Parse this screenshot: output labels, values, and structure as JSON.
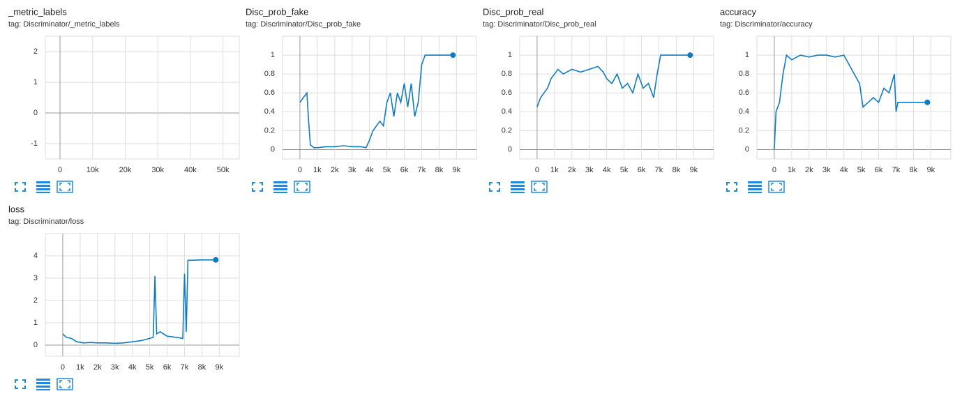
{
  "chart_data": [
    {
      "type": "line",
      "title": "_metric_labels",
      "subtitle": "tag: Discriminator/_metric_labels",
      "x": [],
      "values": [],
      "color": "#0f7cc0",
      "xlim": [
        -4500,
        55000
      ],
      "ylim": [
        -1.5,
        2.5
      ],
      "xticks": [
        0,
        {
          "value": 10000,
          "label": "10k"
        },
        {
          "value": 20000,
          "label": "20k"
        },
        {
          "value": 30000,
          "label": "30k"
        },
        {
          "value": 40000,
          "label": "40k"
        },
        {
          "value": 50000,
          "label": "50k"
        }
      ],
      "yticks": [
        -1,
        0,
        1,
        2
      ],
      "grid": true
    },
    {
      "type": "line",
      "title": "Disc_prob_fake",
      "subtitle": "tag: Discriminator/Disc_prob_fake",
      "x": [
        0,
        200,
        400,
        500,
        600,
        800,
        1000,
        1500,
        2000,
        2500,
        3000,
        3500,
        3800,
        4000,
        4200,
        4400,
        4600,
        4800,
        5000,
        5200,
        5400,
        5600,
        5800,
        6000,
        6200,
        6400,
        6600,
        6800,
        7000,
        7200,
        8000,
        8800
      ],
      "values": [
        0.5,
        0.55,
        0.6,
        0.3,
        0.05,
        0.02,
        0.02,
        0.03,
        0.03,
        0.04,
        0.03,
        0.03,
        0.02,
        0.1,
        0.2,
        0.25,
        0.3,
        0.25,
        0.5,
        0.6,
        0.35,
        0.6,
        0.5,
        0.7,
        0.45,
        0.7,
        0.35,
        0.5,
        0.9,
        1,
        1,
        1
      ],
      "color": "#0f7cc0",
      "xlim": [
        -1000,
        10150
      ],
      "ylim": [
        -0.1,
        1.2
      ],
      "xticks": [
        0,
        {
          "value": 1000,
          "label": "1k"
        },
        {
          "value": 2000,
          "label": "2k"
        },
        {
          "value": 3000,
          "label": "3k"
        },
        {
          "value": 4000,
          "label": "4k"
        },
        {
          "value": 5000,
          "label": "5k"
        },
        {
          "value": 6000,
          "label": "6k"
        },
        {
          "value": 7000,
          "label": "7k"
        },
        {
          "value": 8000,
          "label": "8k"
        },
        {
          "value": 9000,
          "label": "9k"
        }
      ],
      "yticks": [
        0,
        0.2,
        0.4,
        0.6,
        0.8,
        1
      ],
      "grid": true
    },
    {
      "type": "line",
      "title": "Disc_prob_real",
      "subtitle": "tag: Discriminator/Disc_prob_real",
      "x": [
        0,
        200,
        400,
        600,
        800,
        1000,
        1200,
        1500,
        2000,
        2500,
        3000,
        3500,
        3800,
        4000,
        4300,
        4600,
        4900,
        5200,
        5500,
        5800,
        6100,
        6400,
        6700,
        6900,
        7100,
        8000,
        8800
      ],
      "values": [
        0.45,
        0.55,
        0.6,
        0.65,
        0.75,
        0.8,
        0.85,
        0.8,
        0.85,
        0.82,
        0.85,
        0.88,
        0.82,
        0.75,
        0.7,
        0.8,
        0.65,
        0.7,
        0.6,
        0.8,
        0.65,
        0.7,
        0.55,
        0.8,
        1,
        1,
        1
      ],
      "color": "#0f7cc0",
      "xlim": [
        -1000,
        10150
      ],
      "ylim": [
        -0.1,
        1.2
      ],
      "xticks": [
        0,
        {
          "value": 1000,
          "label": "1k"
        },
        {
          "value": 2000,
          "label": "2k"
        },
        {
          "value": 3000,
          "label": "3k"
        },
        {
          "value": 4000,
          "label": "4k"
        },
        {
          "value": 5000,
          "label": "5k"
        },
        {
          "value": 6000,
          "label": "6k"
        },
        {
          "value": 7000,
          "label": "7k"
        },
        {
          "value": 8000,
          "label": "8k"
        },
        {
          "value": 9000,
          "label": "9k"
        }
      ],
      "yticks": [
        0,
        0.2,
        0.4,
        0.6,
        0.8,
        1
      ],
      "grid": true
    },
    {
      "type": "line",
      "title": "accuracy",
      "subtitle": "tag: Discriminator/accuracy",
      "x": [
        0,
        100,
        300,
        500,
        700,
        1000,
        1500,
        2000,
        2500,
        3000,
        3500,
        4000,
        4300,
        4600,
        4900,
        5100,
        5400,
        5700,
        6000,
        6300,
        6600,
        6900,
        7000,
        7100,
        8000,
        8800
      ],
      "values": [
        0,
        0.4,
        0.5,
        0.8,
        1,
        0.95,
        1,
        0.98,
        1,
        1,
        0.98,
        1,
        0.9,
        0.8,
        0.7,
        0.45,
        0.5,
        0.55,
        0.5,
        0.65,
        0.6,
        0.8,
        0.4,
        0.5,
        0.5,
        0.5
      ],
      "color": "#0f7cc0",
      "xlim": [
        -1000,
        10150
      ],
      "ylim": [
        -0.1,
        1.2
      ],
      "xticks": [
        0,
        {
          "value": 1000,
          "label": "1k"
        },
        {
          "value": 2000,
          "label": "2k"
        },
        {
          "value": 3000,
          "label": "3k"
        },
        {
          "value": 4000,
          "label": "4k"
        },
        {
          "value": 5000,
          "label": "5k"
        },
        {
          "value": 6000,
          "label": "6k"
        },
        {
          "value": 7000,
          "label": "7k"
        },
        {
          "value": 8000,
          "label": "8k"
        },
        {
          "value": 9000,
          "label": "9k"
        }
      ],
      "yticks": [
        0,
        0.2,
        0.4,
        0.6,
        0.8,
        1
      ],
      "grid": true
    },
    {
      "type": "line",
      "title": "loss",
      "subtitle": "tag: Discriminator/loss",
      "x": [
        0,
        200,
        500,
        800,
        1200,
        1600,
        2000,
        2500,
        3000,
        3500,
        4000,
        4500,
        5000,
        5200,
        5300,
        5400,
        5600,
        6000,
        6500,
        6900,
        7000,
        7100,
        7200,
        8000,
        8800
      ],
      "values": [
        0.5,
        0.35,
        0.3,
        0.15,
        0.1,
        0.12,
        0.1,
        0.1,
        0.08,
        0.1,
        0.15,
        0.2,
        0.3,
        0.35,
        3.1,
        0.5,
        0.6,
        0.4,
        0.35,
        0.3,
        3.2,
        0.6,
        3.8,
        3.82,
        3.82
      ],
      "color": "#0f7cc0",
      "xlim": [
        -1000,
        10150
      ],
      "ylim": [
        -0.5,
        5
      ],
      "xticks": [
        0,
        {
          "value": 1000,
          "label": "1k"
        },
        {
          "value": 2000,
          "label": "2k"
        },
        {
          "value": 3000,
          "label": "3k"
        },
        {
          "value": 4000,
          "label": "4k"
        },
        {
          "value": 5000,
          "label": "5k"
        },
        {
          "value": 6000,
          "label": "6k"
        },
        {
          "value": 7000,
          "label": "7k"
        },
        {
          "value": 8000,
          "label": "8k"
        },
        {
          "value": 9000,
          "label": "9k"
        }
      ],
      "yticks": [
        0,
        1,
        2,
        3,
        4
      ],
      "grid": true
    }
  ]
}
